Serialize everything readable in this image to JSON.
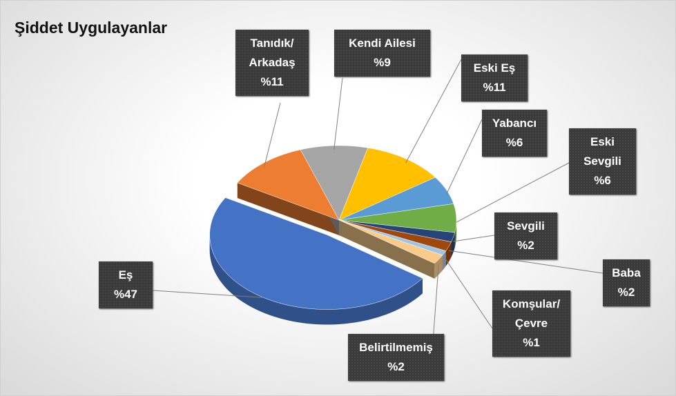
{
  "chart_data": {
    "type": "pie3d",
    "title": "Şiddet Uygulayanlar",
    "categories": [
      "Tanıdık/ Arkadaş",
      "Kendi Ailesi",
      "Eski Eş",
      "Yabancı",
      "Eski Sevgili",
      "Sevgili",
      "Baba",
      "Komşular/ Çevre",
      "Belirtilmemiş",
      "Eş"
    ],
    "values": [
      11,
      9,
      11,
      6,
      6,
      2,
      2,
      1,
      2,
      47
    ],
    "value_labels": [
      "%11",
      "%9",
      "%11",
      "%6",
      "%6",
      "%2",
      "%2",
      "%1",
      "%2",
      "%47"
    ],
    "colors": [
      "#ed7d31",
      "#a5a5a5",
      "#ffc000",
      "#5b9bd5",
      "#70ad47",
      "#264478",
      "#9e480e",
      "#9dc3e6",
      "#f8cb8a",
      "#4472c4"
    ]
  }
}
